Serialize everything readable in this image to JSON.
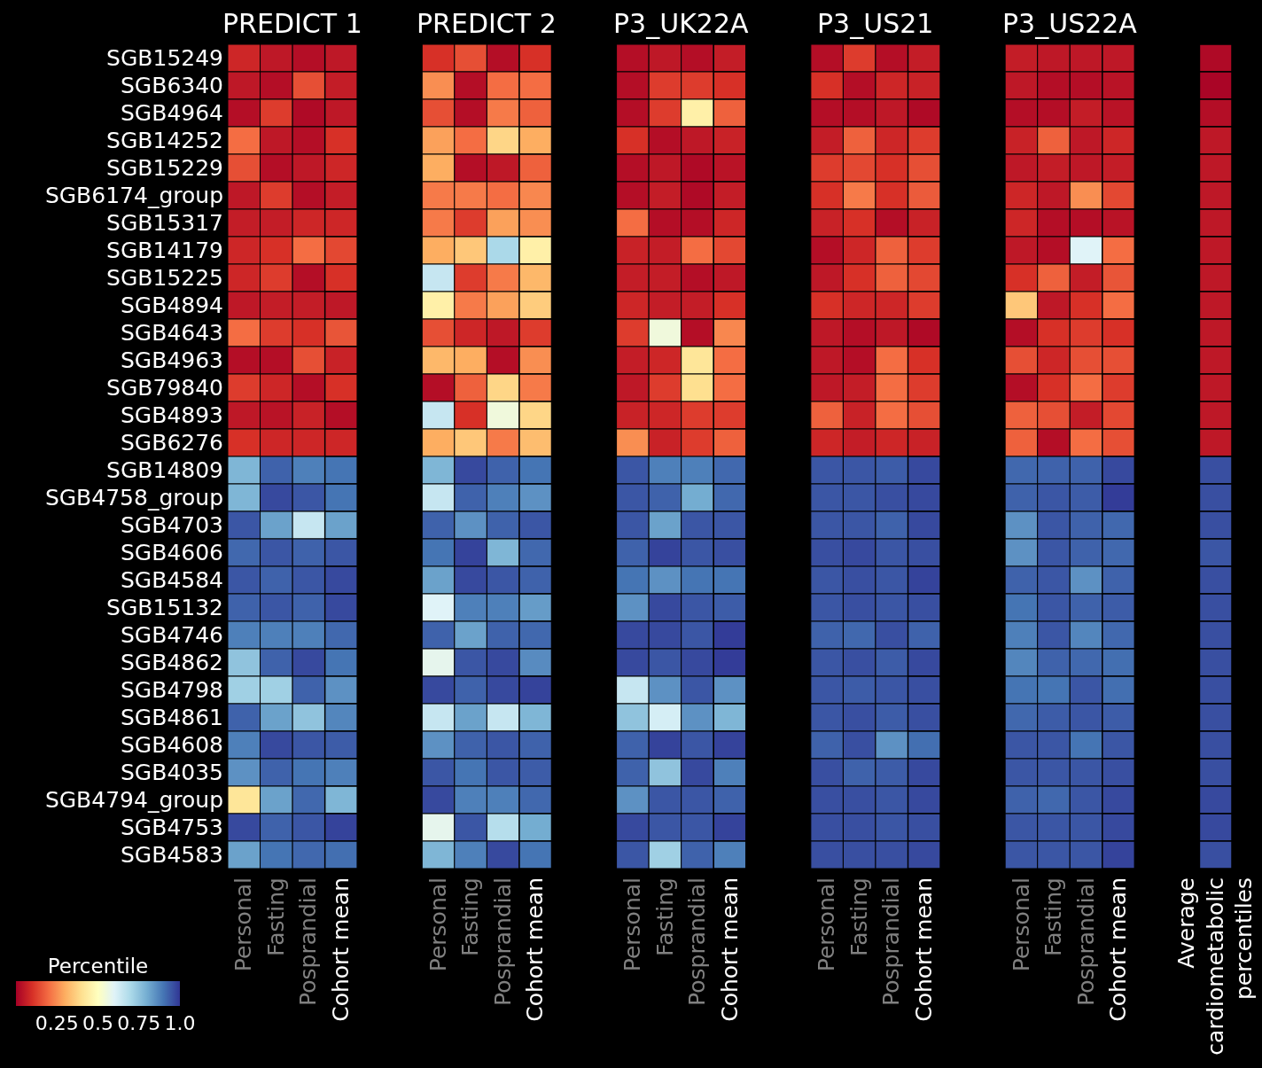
{
  "chart_data": {
    "type": "heatmap",
    "clabel": "Percentile",
    "clim": [
      0,
      1
    ],
    "cticks": [
      {
        "value": 0.25,
        "label": "0.25"
      },
      0.5,
      0.75,
      {
        "value": 1,
        "label": "1.0"
      }
    ],
    "annotations": [
      "PREDICT 1",
      "PREDICT 2",
      "P3_UK22A",
      "P3_US21",
      "P3_US22A"
    ],
    "categories": [
      "Personal",
      "Fasting",
      "Posprandial",
      "Cohort mean",
      null,
      null,
      "Personal",
      "Fasting",
      "Posprandial",
      "Cohort mean",
      null,
      null,
      "Personal",
      "Fasting",
      "Posprandial",
      "Cohort mean",
      null,
      null,
      "Personal",
      "Fasting",
      "Posprandial",
      "Cohort mean",
      null,
      null,
      "Personal",
      "Fasting",
      "Posprandial",
      "Cohort mean",
      null,
      null,
      "Average cardiometabolic percentiles"
    ],
    "y_categories": [
      "SGB15249",
      "SGB6340",
      "SGB4964",
      "SGB14252",
      "SGB15229",
      "SGB6174_group",
      "SGB15317",
      "SGB14179",
      "SGB15225",
      "SGB4894",
      "SGB4643",
      "SGB4963",
      "SGB79840",
      "SGB4893",
      "SGB6276",
      "SGB14809",
      "SGB4758_group",
      "SGB4703",
      "SGB4606",
      "SGB4584",
      "SGB15132",
      "SGB4746",
      "SGB4862",
      "SGB4798",
      "SGB4861",
      "SGB4608",
      "SGB4035",
      "SGB4794_group",
      "SGB4753",
      "SGB4583"
    ],
    "cells": [
      [
        0.08,
        0.05,
        0.03,
        0.05,
        null,
        null,
        0.1,
        0.15,
        0.03,
        0.1,
        null,
        null,
        0.03,
        0.05,
        0.03,
        0.06,
        null,
        null,
        0.03,
        0.12,
        0.03,
        0.06,
        null,
        null,
        0.06,
        0.05,
        0.05,
        0.05,
        null,
        null,
        0.02
      ],
      [
        0.05,
        0.03,
        0.15,
        0.06,
        null,
        null,
        0.25,
        0.03,
        0.2,
        0.2,
        null,
        null,
        0.03,
        0.12,
        0.12,
        0.1,
        null,
        null,
        0.1,
        0.03,
        0.08,
        0.07,
        null,
        null,
        0.05,
        0.03,
        0.03,
        0.04,
        null,
        null,
        0.01
      ],
      [
        0.03,
        0.12,
        0.02,
        0.05,
        null,
        null,
        0.15,
        0.03,
        0.22,
        0.18,
        null,
        null,
        0.03,
        0.12,
        0.45,
        0.18,
        null,
        null,
        0.03,
        0.03,
        0.05,
        0.02,
        null,
        null,
        0.03,
        0.03,
        0.06,
        0.04,
        null,
        null,
        0.03
      ],
      [
        0.2,
        0.05,
        0.03,
        0.1,
        null,
        null,
        0.28,
        0.2,
        0.38,
        0.3,
        null,
        null,
        0.1,
        0.03,
        0.05,
        0.07,
        null,
        null,
        0.06,
        0.18,
        0.08,
        0.12,
        null,
        null,
        0.07,
        0.18,
        0.05,
        0.08,
        null,
        null,
        0.05
      ],
      [
        0.15,
        0.03,
        0.05,
        0.08,
        null,
        null,
        0.3,
        0.03,
        0.05,
        0.18,
        null,
        null,
        0.03,
        0.05,
        0.02,
        0.04,
        null,
        null,
        0.12,
        0.14,
        0.1,
        0.15,
        null,
        null,
        0.05,
        0.06,
        0.05,
        0.06,
        null,
        null,
        0.05
      ],
      [
        0.05,
        0.12,
        0.03,
        0.06,
        null,
        null,
        0.22,
        0.22,
        0.2,
        0.24,
        null,
        null,
        0.03,
        0.06,
        0.02,
        0.06,
        null,
        null,
        0.1,
        0.22,
        0.1,
        0.17,
        null,
        null,
        0.08,
        0.05,
        0.25,
        0.14,
        null,
        null,
        0.05
      ],
      [
        0.06,
        0.06,
        0.08,
        0.08,
        null,
        null,
        0.22,
        0.12,
        0.28,
        0.25,
        null,
        null,
        0.2,
        0.03,
        0.03,
        0.08,
        null,
        null,
        0.07,
        0.1,
        0.03,
        0.07,
        null,
        null,
        0.08,
        0.03,
        0.03,
        0.04,
        null,
        null,
        0.05
      ],
      [
        0.08,
        0.1,
        0.2,
        0.14,
        null,
        null,
        0.3,
        0.35,
        0.7,
        0.45,
        null,
        null,
        0.07,
        0.06,
        0.2,
        0.14,
        null,
        null,
        0.03,
        0.08,
        0.18,
        0.12,
        null,
        null,
        0.05,
        0.03,
        0.6,
        0.2,
        null,
        null,
        0.05
      ],
      [
        0.08,
        0.12,
        0.03,
        0.1,
        null,
        null,
        0.65,
        0.12,
        0.22,
        0.32,
        null,
        null,
        0.06,
        0.06,
        0.03,
        0.05,
        null,
        null,
        0.05,
        0.1,
        0.18,
        0.14,
        null,
        null,
        0.1,
        0.18,
        0.06,
        0.16,
        null,
        null,
        0.05
      ],
      [
        0.05,
        0.06,
        0.06,
        0.05,
        null,
        null,
        0.45,
        0.22,
        0.28,
        0.36,
        null,
        null,
        0.08,
        0.06,
        0.06,
        0.1,
        null,
        null,
        0.1,
        0.08,
        0.08,
        0.12,
        null,
        null,
        0.35,
        0.05,
        0.1,
        0.2,
        null,
        null,
        0.05
      ],
      [
        0.2,
        0.12,
        0.1,
        0.16,
        null,
        null,
        0.15,
        0.08,
        0.05,
        0.12,
        null,
        null,
        0.12,
        0.55,
        0.03,
        0.24,
        null,
        null,
        0.05,
        0.03,
        0.05,
        0.02,
        null,
        null,
        0.03,
        0.1,
        0.12,
        0.1,
        null,
        null,
        0.05
      ],
      [
        0.03,
        0.03,
        0.15,
        0.07,
        null,
        null,
        0.32,
        0.3,
        0.03,
        0.25,
        null,
        null,
        0.06,
        0.08,
        0.42,
        0.2,
        null,
        null,
        0.05,
        0.03,
        0.2,
        0.1,
        null,
        null,
        0.15,
        0.08,
        0.15,
        0.15,
        null,
        null,
        0.05
      ],
      [
        0.12,
        0.08,
        0.03,
        0.1,
        null,
        null,
        0.03,
        0.18,
        0.38,
        0.22,
        null,
        null,
        0.05,
        0.12,
        0.4,
        0.2,
        null,
        null,
        0.05,
        0.06,
        0.2,
        0.12,
        null,
        null,
        0.03,
        0.1,
        0.2,
        0.12,
        null,
        null,
        0.05
      ],
      [
        0.05,
        0.04,
        0.07,
        0.03,
        null,
        null,
        0.65,
        0.1,
        0.55,
        0.38,
        null,
        null,
        0.07,
        0.08,
        0.12,
        0.12,
        null,
        null,
        0.18,
        0.07,
        0.2,
        0.15,
        null,
        null,
        0.18,
        0.15,
        0.06,
        0.14,
        null,
        null,
        0.05
      ],
      [
        0.1,
        0.08,
        0.08,
        0.08,
        null,
        null,
        0.3,
        0.35,
        0.22,
        0.33,
        null,
        null,
        0.25,
        0.07,
        0.12,
        0.18,
        null,
        null,
        0.08,
        0.06,
        0.08,
        0.07,
        null,
        null,
        0.18,
        0.03,
        0.2,
        0.15,
        null,
        null,
        0.05
      ],
      [
        0.78,
        0.93,
        0.88,
        0.9,
        null,
        null,
        0.78,
        0.97,
        0.93,
        0.9,
        null,
        null,
        0.95,
        0.88,
        0.88,
        0.92,
        null,
        null,
        0.95,
        0.95,
        0.94,
        0.97,
        null,
        null,
        0.92,
        0.93,
        0.93,
        0.97,
        null,
        null,
        0.96
      ],
      [
        0.78,
        0.97,
        0.95,
        0.9,
        null,
        null,
        0.65,
        0.93,
        0.88,
        0.85,
        null,
        null,
        0.95,
        0.93,
        0.8,
        0.92,
        null,
        null,
        0.95,
        0.95,
        0.96,
        0.97,
        null,
        null,
        0.93,
        0.95,
        0.94,
        0.99,
        null,
        null,
        0.96
      ],
      [
        0.95,
        0.82,
        0.65,
        0.82,
        null,
        null,
        0.93,
        0.85,
        0.93,
        0.95,
        null,
        null,
        0.95,
        0.82,
        0.95,
        0.95,
        null,
        null,
        0.95,
        0.95,
        0.93,
        0.97,
        null,
        null,
        0.85,
        0.95,
        0.93,
        0.92,
        null,
        null,
        0.96
      ],
      [
        0.92,
        0.95,
        0.93,
        0.95,
        null,
        null,
        0.9,
        0.98,
        0.78,
        0.92,
        null,
        null,
        0.93,
        0.98,
        0.95,
        0.96,
        null,
        null,
        0.96,
        0.97,
        0.95,
        0.96,
        null,
        null,
        0.85,
        0.95,
        0.93,
        0.92,
        null,
        null,
        0.95
      ],
      [
        0.95,
        0.93,
        0.95,
        0.97,
        null,
        null,
        0.82,
        0.97,
        0.95,
        0.93,
        null,
        null,
        0.9,
        0.85,
        0.9,
        0.9,
        null,
        null,
        0.95,
        0.96,
        0.95,
        0.98,
        null,
        null,
        0.93,
        0.95,
        0.85,
        0.93,
        null,
        null,
        0.96
      ],
      [
        0.93,
        0.95,
        0.93,
        0.97,
        null,
        null,
        0.6,
        0.88,
        0.88,
        0.83,
        null,
        null,
        0.85,
        0.97,
        0.95,
        0.94,
        null,
        null,
        0.95,
        0.96,
        0.95,
        0.96,
        null,
        null,
        0.9,
        0.95,
        0.93,
        0.94,
        null,
        null,
        0.96
      ],
      [
        0.88,
        0.88,
        0.88,
        0.92,
        null,
        null,
        0.93,
        0.82,
        0.93,
        0.92,
        null,
        null,
        0.97,
        0.97,
        0.95,
        0.99,
        null,
        null,
        0.93,
        0.92,
        0.96,
        0.93,
        null,
        null,
        0.88,
        0.95,
        0.87,
        0.92,
        null,
        null,
        0.96
      ],
      [
        0.75,
        0.93,
        0.97,
        0.9,
        null,
        null,
        0.58,
        0.95,
        0.97,
        0.86,
        null,
        null,
        0.97,
        0.95,
        0.97,
        0.99,
        null,
        null,
        0.95,
        0.96,
        0.94,
        0.97,
        null,
        null,
        0.87,
        0.93,
        0.92,
        0.91,
        null,
        null,
        0.96
      ],
      [
        0.72,
        0.72,
        0.93,
        0.85,
        null,
        null,
        0.97,
        0.93,
        0.97,
        0.98,
        null,
        null,
        0.65,
        0.85,
        0.95,
        0.85,
        null,
        null,
        0.95,
        0.94,
        0.95,
        0.96,
        null,
        null,
        0.9,
        0.9,
        0.95,
        0.91,
        null,
        null,
        0.96
      ],
      [
        0.93,
        0.82,
        0.75,
        0.87,
        null,
        null,
        0.65,
        0.82,
        0.65,
        0.78,
        null,
        null,
        0.75,
        0.62,
        0.85,
        0.78,
        null,
        null,
        0.95,
        0.96,
        0.94,
        0.96,
        null,
        null,
        0.92,
        0.94,
        0.95,
        0.94,
        null,
        null,
        0.96
      ],
      [
        0.88,
        0.97,
        0.95,
        0.94,
        null,
        null,
        0.85,
        0.93,
        0.95,
        0.93,
        null,
        null,
        0.93,
        0.98,
        0.95,
        0.98,
        null,
        null,
        0.93,
        0.96,
        0.85,
        0.91,
        null,
        null,
        0.95,
        0.95,
        0.9,
        0.95,
        null,
        null,
        0.96
      ],
      [
        0.85,
        0.93,
        0.9,
        0.88,
        null,
        null,
        0.95,
        0.9,
        0.95,
        0.94,
        null,
        null,
        0.93,
        0.75,
        0.97,
        0.88,
        null,
        null,
        0.96,
        0.93,
        0.94,
        0.97,
        null,
        null,
        0.95,
        0.95,
        0.95,
        0.96,
        null,
        null,
        0.96
      ],
      [
        0.42,
        0.82,
        0.92,
        0.78,
        null,
        null,
        0.97,
        0.88,
        0.88,
        0.92,
        null,
        null,
        0.85,
        0.95,
        0.95,
        0.93,
        null,
        null,
        0.96,
        0.96,
        0.95,
        0.97,
        null,
        null,
        0.93,
        0.92,
        0.95,
        0.97,
        null,
        null,
        0.97
      ],
      [
        0.97,
        0.93,
        0.95,
        0.98,
        null,
        null,
        0.58,
        0.95,
        0.68,
        0.8,
        null,
        null,
        0.97,
        0.95,
        0.95,
        0.98,
        null,
        null,
        0.96,
        0.96,
        0.95,
        0.96,
        null,
        null,
        0.95,
        0.95,
        0.95,
        0.97,
        null,
        null,
        0.97
      ],
      [
        0.82,
        0.9,
        0.92,
        0.91,
        null,
        null,
        0.78,
        0.88,
        0.97,
        0.9,
        null,
        null,
        0.95,
        0.72,
        0.93,
        0.88,
        null,
        null,
        0.96,
        0.96,
        0.96,
        0.97,
        null,
        null,
        0.95,
        0.95,
        0.95,
        0.98,
        null,
        null,
        0.96
      ]
    ]
  }
}
